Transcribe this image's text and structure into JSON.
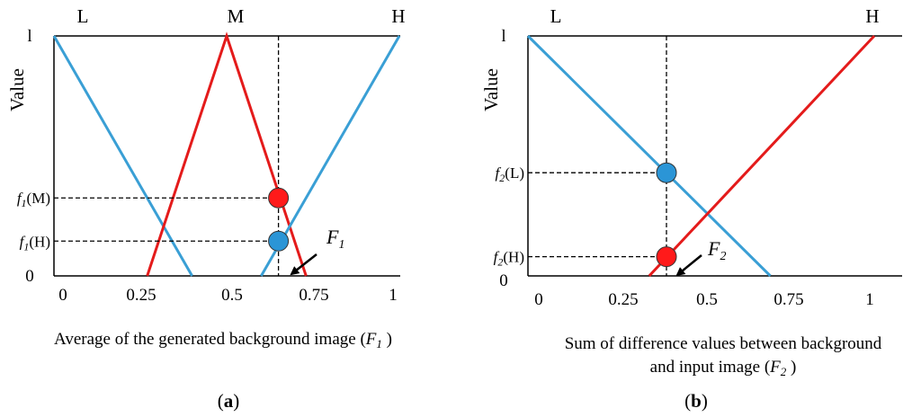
{
  "chart_data": [
    {
      "type": "line",
      "panel_label": "a",
      "categories_top": [
        "L",
        "M",
        "H"
      ],
      "ylabel": "Value",
      "xlabel": "Average of the generated background image",
      "xlabel_var": "F",
      "xlabel_sub": "1",
      "x_ticks": [
        "0",
        "0.25",
        "0.5",
        "0.75",
        "1"
      ],
      "y_ticks": [
        "l",
        "0"
      ],
      "xlim": [
        0,
        1
      ],
      "ylim": [
        0,
        1
      ],
      "series": [
        {
          "color": "#3a9fd5",
          "x": [
            0,
            0.4
          ],
          "y": [
            1,
            0
          ]
        },
        {
          "color": "#e41b1b",
          "x": [
            0.27,
            0.5,
            0.73
          ],
          "y": [
            0,
            1,
            0
          ]
        },
        {
          "color": "#3a9fd5",
          "x": [
            0.6,
            1
          ],
          "y": [
            0,
            1
          ]
        }
      ],
      "input_x": 0.65,
      "points": [
        {
          "name": "f1(M)",
          "label_main": "f",
          "label_sub": "1",
          "label_arg": "(M)",
          "x": 0.65,
          "y": 0.325,
          "color": "#ff1a1a"
        },
        {
          "name": "f1(H)",
          "label_main": "f",
          "label_sub": "1",
          "label_arg": "(H)",
          "x": 0.65,
          "y": 0.145,
          "color": "#2b95d6"
        }
      ],
      "arrow_label": {
        "main": "F",
        "sub": "1"
      }
    },
    {
      "type": "line",
      "panel_label": "b",
      "categories_top": [
        "L",
        "H"
      ],
      "ylabel": "Value",
      "xlabel_line1": "Sum of difference values between background",
      "xlabel_line2": "and input image",
      "xlabel_var": "F",
      "xlabel_sub": "2",
      "x_ticks": [
        "0",
        "0.25",
        "0.5",
        "0.75",
        "1"
      ],
      "y_ticks": [
        "l",
        "0"
      ],
      "xlim": [
        0,
        1
      ],
      "ylim": [
        0,
        1
      ],
      "series": [
        {
          "color": "#3a9fd5",
          "x": [
            0,
            0.7
          ],
          "y": [
            1,
            0
          ]
        },
        {
          "color": "#e41b1b",
          "x": [
            0.35,
            1
          ],
          "y": [
            0,
            1
          ]
        }
      ],
      "input_x": 0.4,
      "points": [
        {
          "name": "f2(L)",
          "label_main": "f",
          "label_sub": "2",
          "label_arg": "(L)",
          "x": 0.4,
          "y": 0.43,
          "color": "#2b95d6"
        },
        {
          "name": "f2(H)",
          "label_main": "f",
          "label_sub": "2",
          "label_arg": "(H)",
          "x": 0.4,
          "y": 0.08,
          "color": "#ff1a1a"
        }
      ],
      "arrow_label": {
        "main": "F",
        "sub": "2"
      }
    }
  ]
}
